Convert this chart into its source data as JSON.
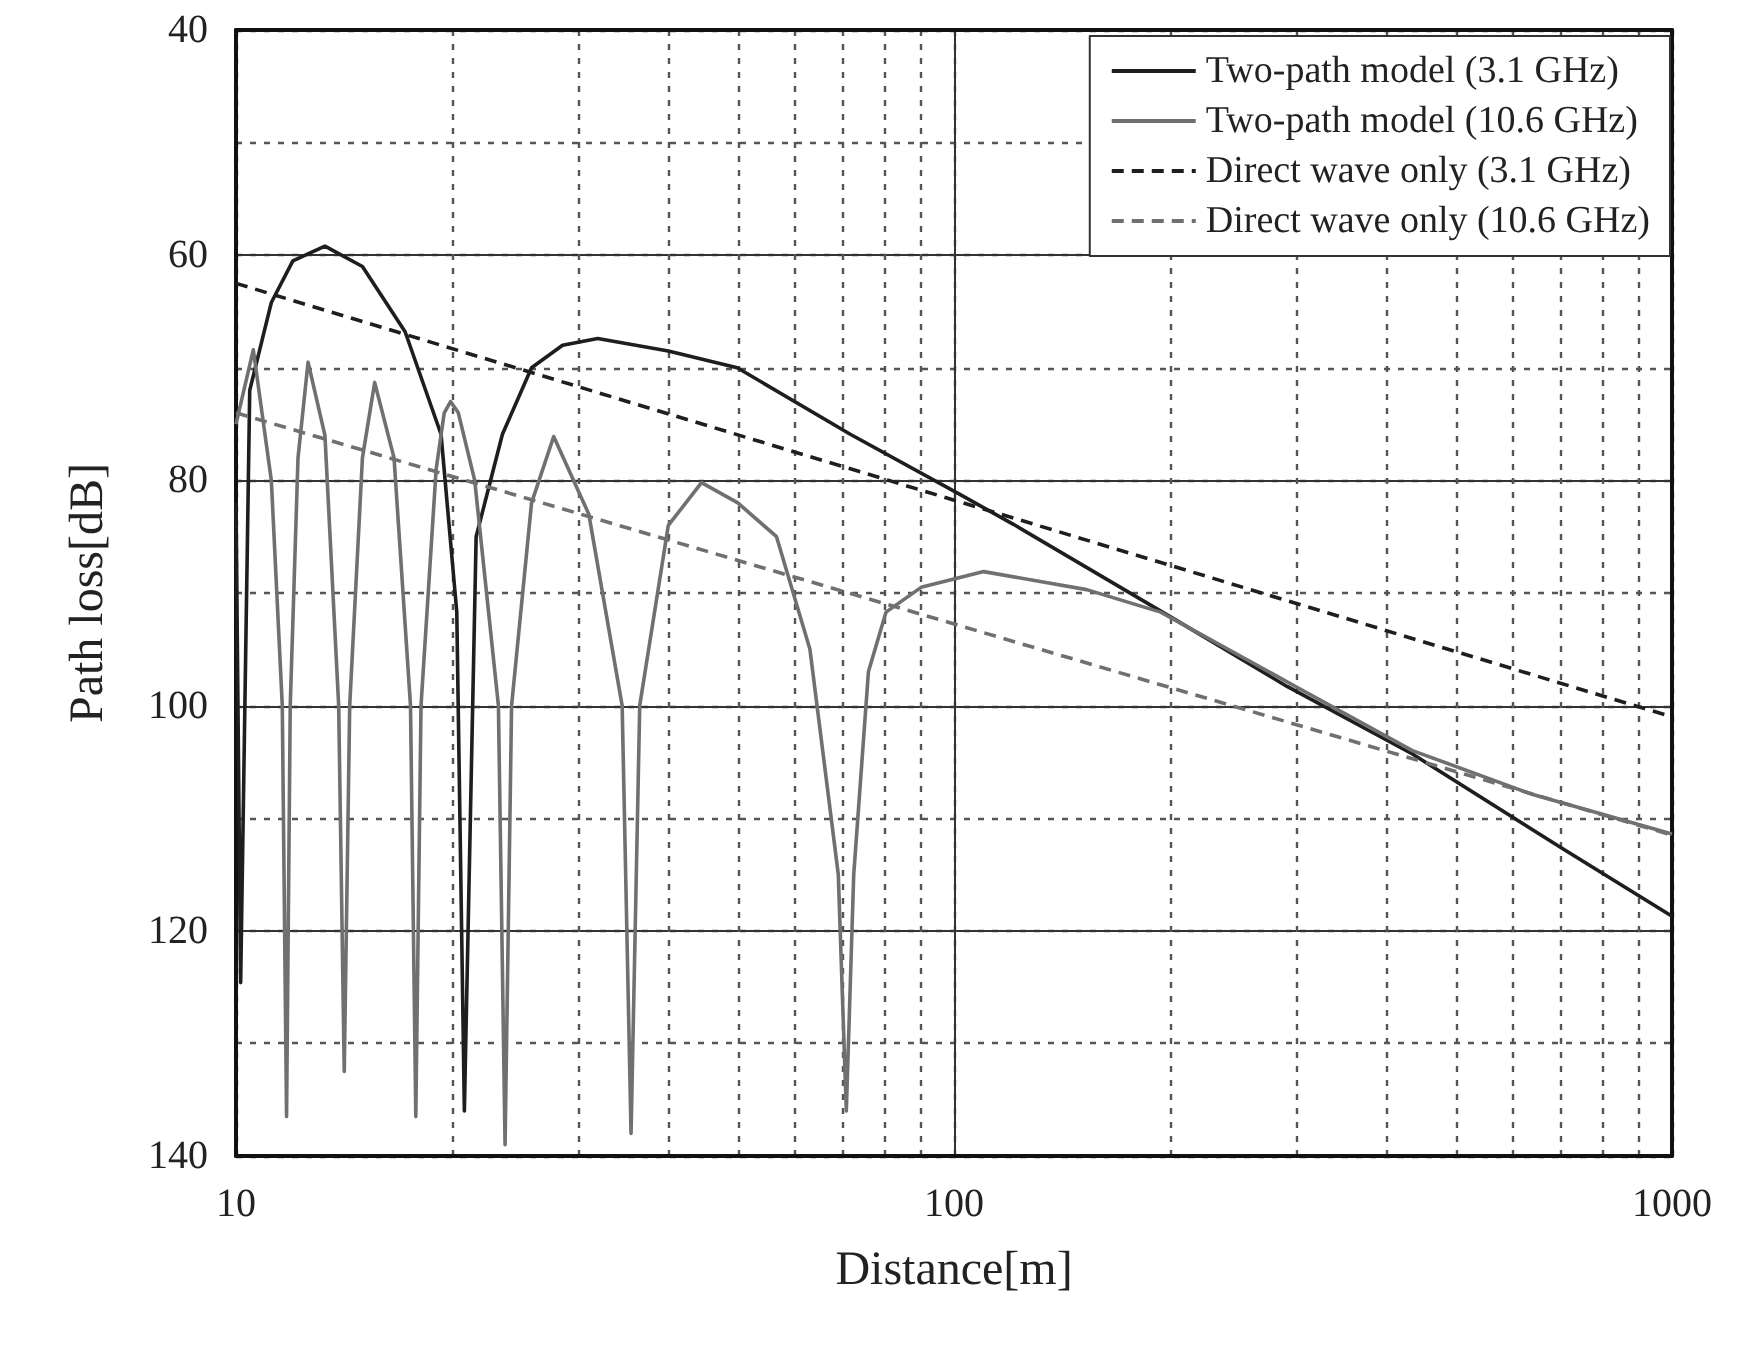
{
  "chart_data": {
    "type": "line",
    "xlabel": "Distance[m]",
    "ylabel": "Path loss[dB]",
    "log": "x",
    "xlim": [
      10,
      1000
    ],
    "xticks": [
      10,
      {
        "value": 20,
        "label": null
      },
      {
        "value": 30,
        "label": null
      },
      {
        "value": 40,
        "label": null
      },
      {
        "value": 50,
        "label": null
      },
      {
        "value": 60,
        "label": null
      },
      {
        "value": 70,
        "label": null
      },
      {
        "value": 80,
        "label": null
      },
      {
        "value": 90,
        "label": null
      },
      100,
      {
        "value": 200,
        "label": null
      },
      {
        "value": 300,
        "label": null
      },
      {
        "value": 400,
        "label": null
      },
      {
        "value": 500,
        "label": null
      },
      {
        "value": 600,
        "label": null
      },
      {
        "value": 700,
        "label": null
      },
      {
        "value": 800,
        "label": null
      },
      {
        "value": 900,
        "label": null
      },
      1000
    ],
    "ylim": [
      140,
      40
    ],
    "yticks": [
      40,
      {
        "value": 50,
        "label": null
      },
      60,
      {
        "value": 70,
        "label": null
      },
      80,
      {
        "value": 90,
        "label": null
      },
      100,
      {
        "value": 110,
        "label": null
      },
      120,
      {
        "value": 130,
        "label": null
      },
      140
    ],
    "grid": true,
    "legend": "top right",
    "marker": "none",
    "series": [
      {
        "name": "Two-path model (3.1 GHz)",
        "color": "#1e1e1e",
        "line_style": "solid",
        "x": [
          10,
          10.15,
          10.45,
          11.2,
          12,
          13.3,
          15,
          17.2,
          19.3,
          20.3,
          20.8,
          21.6,
          23.5,
          25.8,
          28.5,
          31.9,
          40,
          49.9,
          71.7,
          101.6,
          121,
          200,
          291,
          435,
          700,
          1000
        ],
        "values": [
          82,
          124.6,
          72,
          64.2,
          60.5,
          59.2,
          61,
          66.8,
          75.9,
          91.7,
          136,
          85,
          75.9,
          70,
          68,
          67.4,
          68.5,
          70,
          75.9,
          81.2,
          83.9,
          92.1,
          98.3,
          104.3,
          112.6,
          118.7
        ]
      },
      {
        "name": "Two-path model (10.6 GHz)",
        "color": "#707070",
        "line_style": "solid",
        "x": [
          10,
          10.57,
          11.2,
          11.6,
          11.76,
          11.9,
          12.2,
          12.6,
          13.3,
          13.9,
          14.15,
          14.4,
          15,
          15.6,
          16.6,
          17.5,
          17.8,
          18.1,
          19,
          19.5,
          19.9,
          20.4,
          21.5,
          23.2,
          23.7,
          24.2,
          25.8,
          27.7,
          31,
          34.5,
          35.5,
          36.5,
          40,
          44.5,
          50,
          56.6,
          63,
          69,
          70.8,
          72.5,
          76,
          80.4,
          90,
          110,
          153,
          194,
          299,
          435,
          640,
          1000
        ],
        "values": [
          75,
          68.4,
          80,
          100,
          136.5,
          100,
          78,
          69.5,
          76,
          100,
          132.5,
          100,
          78,
          71.3,
          78,
          100,
          136.5,
          100,
          79,
          74,
          73,
          74,
          80,
          100,
          139,
          100,
          82,
          76.1,
          83,
          100,
          138,
          100,
          84,
          80.2,
          82,
          85,
          95,
          115,
          136,
          115,
          97,
          91.7,
          89.5,
          88.1,
          89.7,
          91.7,
          98.3,
          104,
          107.9,
          111.4
        ]
      },
      {
        "name": "Direct wave only (3.1 GHz)",
        "color": "#1e1e1e",
        "line_style": "dashed",
        "x": [
          10,
          1000
        ],
        "values": [
          62.5,
          101
        ]
      },
      {
        "name": "Direct wave only (10.6 GHz)",
        "color": "#707070",
        "line_style": "dashed",
        "x": [
          10,
          1000
        ],
        "values": [
          74,
          111.5
        ]
      }
    ]
  }
}
